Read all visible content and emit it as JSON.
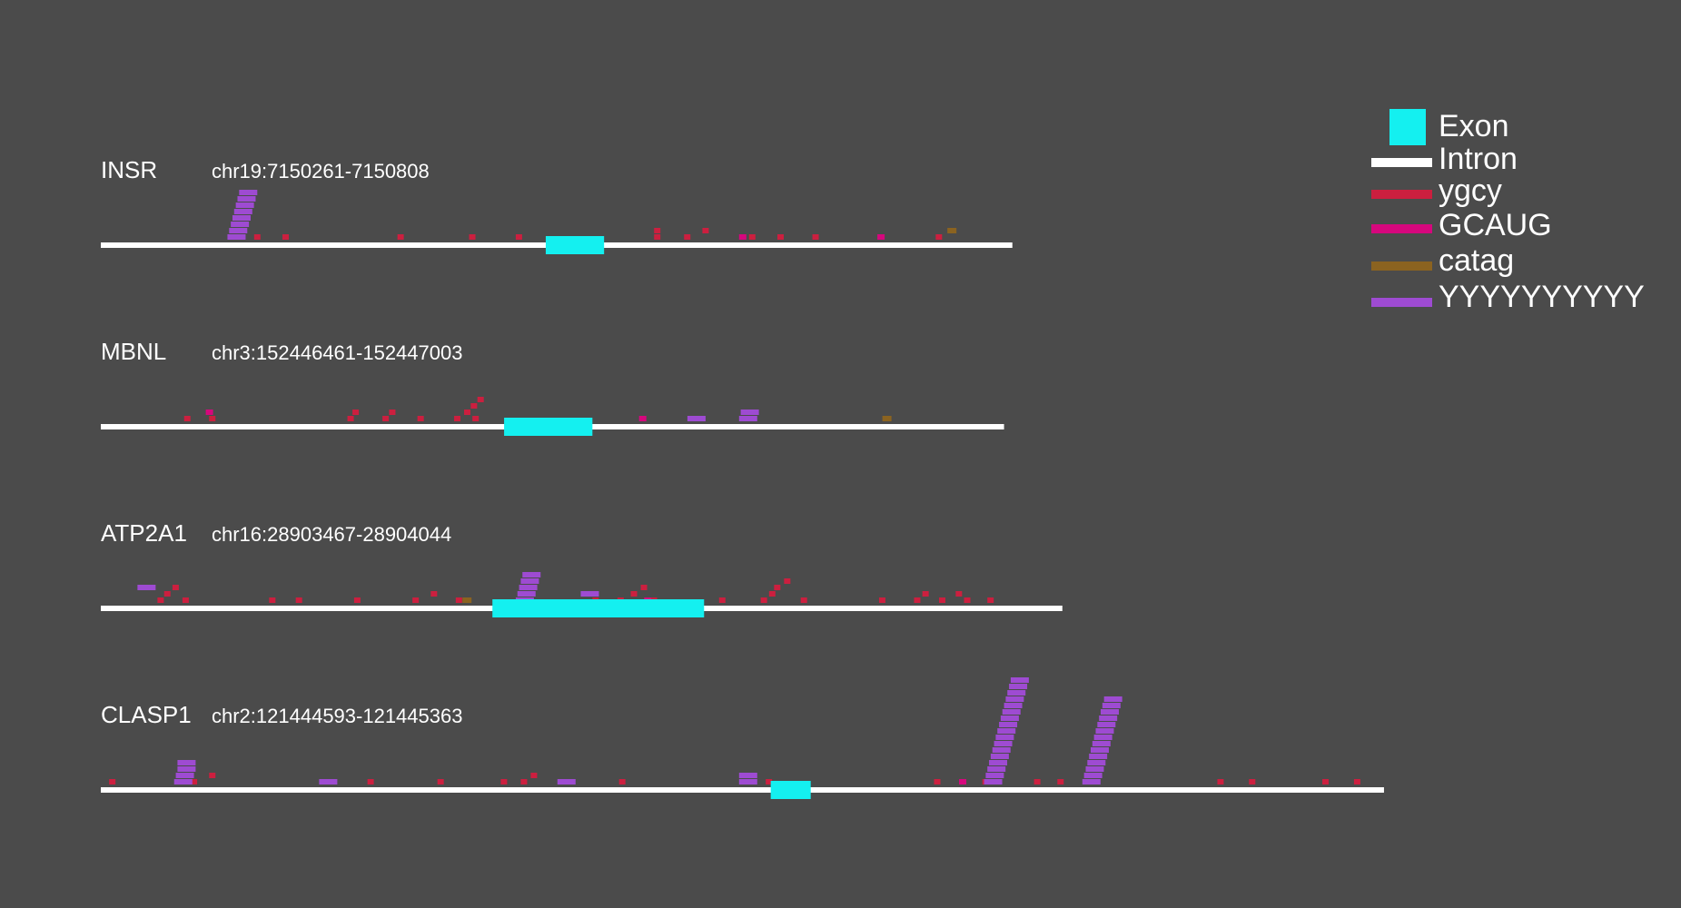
{
  "colors": {
    "background": "#4b4b4b",
    "exon": "#14f0f0",
    "intron": "#ffffff",
    "ygcy": "#cc1f3f",
    "GCAUG": "#d6077d",
    "catag": "#8b6320",
    "YYYYYYYYYY": "#9e4bd2"
  },
  "legend": [
    {
      "key": "exon",
      "label": "Exon"
    },
    {
      "key": "intron",
      "label": "Intron"
    },
    {
      "key": "ygcy",
      "label": "ygcy"
    },
    {
      "key": "GCAUG",
      "label": "GCAUG"
    },
    {
      "key": "catag",
      "label": "catag"
    },
    {
      "key": "YYYYYYYYYY",
      "label": "YYYYYYYYYY"
    }
  ],
  "genes": [
    {
      "name": "INSR",
      "coords": "chr19:7150261-7150808",
      "chrom": "chr19",
      "start": 7150261,
      "end": 7150808,
      "exons": [
        [
          7150528,
          7150563
        ]
      ],
      "motifs": {
        "ygcy": [
          [
            7150353,
            0
          ],
          [
            7150370,
            0
          ],
          [
            7150439,
            0
          ],
          [
            7150482,
            0
          ],
          [
            7150510,
            0
          ],
          [
            7150593,
            0
          ],
          [
            7150593,
            1
          ],
          [
            7150611,
            0
          ],
          [
            7150622,
            1
          ],
          [
            7150650,
            0
          ],
          [
            7150667,
            0
          ],
          [
            7150688,
            0
          ],
          [
            7150762,
            0
          ]
        ],
        "GCAUG": [
          [
            7150644,
            0
          ],
          [
            7150727,
            0
          ]
        ],
        "catag": [
          [
            7150769,
            1
          ]
        ],
        "YYYYYYYYYY": [
          [
            7150337,
            0
          ],
          [
            7150338,
            1
          ],
          [
            7150339,
            2
          ],
          [
            7150340,
            3
          ],
          [
            7150341,
            4
          ],
          [
            7150342,
            5
          ],
          [
            7150343,
            6
          ],
          [
            7150344,
            7
          ]
        ]
      }
    },
    {
      "name": "MBNL",
      "coords": "chr3:152446461-152447003",
      "chrom": "chr3",
      "start": 152446461,
      "end": 152447003,
      "exons": [
        [
          152446703,
          152446756
        ]
      ],
      "motifs": {
        "ygcy": [
          [
            152446511,
            0
          ],
          [
            152446526,
            0
          ],
          [
            152446609,
            0
          ],
          [
            152446612,
            1
          ],
          [
            152446630,
            0
          ],
          [
            152446634,
            1
          ],
          [
            152446651,
            0
          ],
          [
            152446673,
            0
          ],
          [
            152446684,
            0
          ],
          [
            152446679,
            1
          ],
          [
            152446683,
            2
          ],
          [
            152446687,
            3
          ]
        ],
        "GCAUG": [
          [
            152446524,
            1
          ],
          [
            152446784,
            0
          ]
        ],
        "catag": [
          [
            152446930,
            0
          ]
        ],
        "YYYYYYYYYY": [
          [
            152446813,
            0
          ],
          [
            152446844,
            0
          ],
          [
            152446845,
            1
          ]
        ]
      }
    },
    {
      "name": "ATP2A1",
      "coords": "chr16:28903467-28904044",
      "chrom": "chr16",
      "start": 28903467,
      "end": 28904044,
      "exons": [
        [
          28903702,
          28903829
        ]
      ],
      "motifs": {
        "ygcy": [
          [
            28903501,
            0
          ],
          [
            28903505,
            1
          ],
          [
            28903510,
            2
          ],
          [
            28903516,
            0
          ],
          [
            28903568,
            0
          ],
          [
            28903584,
            0
          ],
          [
            28903619,
            0
          ],
          [
            28903654,
            0
          ],
          [
            28903665,
            1
          ],
          [
            28903680,
            0
          ],
          [
            28903762,
            0
          ],
          [
            28903777,
            0
          ],
          [
            28903785,
            1
          ],
          [
            28903791,
            2
          ],
          [
            28903797,
            0
          ],
          [
            28903838,
            0
          ],
          [
            28903863,
            0
          ],
          [
            28903868,
            1
          ],
          [
            28903871,
            2
          ],
          [
            28903877,
            3
          ],
          [
            28903887,
            0
          ],
          [
            28903934,
            0
          ],
          [
            28903955,
            0
          ],
          [
            28903960,
            1
          ],
          [
            28903970,
            0
          ],
          [
            28903985,
            0
          ],
          [
            28903980,
            1
          ],
          [
            28903999,
            0
          ]
        ],
        "GCAUG": [
          [
            28903793,
            0
          ]
        ],
        "catag": [
          [
            28903684,
            0
          ]
        ],
        "YYYYYYYYYY": [
          [
            28903489,
            2
          ],
          [
            28903716,
            0
          ],
          [
            28903717,
            1
          ],
          [
            28903718,
            2
          ],
          [
            28903719,
            3
          ],
          [
            28903720,
            4
          ],
          [
            28903755,
            1
          ]
        ]
      }
    },
    {
      "name": "CLASP1",
      "coords": "chr2:121444593-121445363",
      "chrom": "chr2",
      "start": 121444593,
      "end": 121445363,
      "exons": [
        [
          121444995,
          121445019
        ]
      ],
      "motifs": {
        "ygcy": [
          [
            121444598,
            0
          ],
          [
            121444647,
            0
          ],
          [
            121444658,
            1
          ],
          [
            121444753,
            0
          ],
          [
            121444795,
            0
          ],
          [
            121444833,
            0
          ],
          [
            121444845,
            0
          ],
          [
            121444851,
            1
          ],
          [
            121444904,
            0
          ],
          [
            121444992,
            0
          ],
          [
            121445093,
            0
          ],
          [
            121445122,
            0
          ],
          [
            121445153,
            0
          ],
          [
            121445167,
            0
          ],
          [
            121445263,
            0
          ],
          [
            121445282,
            0
          ],
          [
            121445326,
            0
          ],
          [
            121445345,
            0
          ]
        ],
        "GCAUG": [
          [
            121445108,
            0
          ]
        ],
        "catag": [],
        "YYYYYYYYYY": [
          [
            121444637,
            0
          ],
          [
            121444638,
            1
          ],
          [
            121444639,
            2
          ],
          [
            121444639,
            3
          ],
          [
            121444724,
            0
          ],
          [
            121444867,
            0
          ],
          [
            121444976,
            0
          ],
          [
            121444976,
            1
          ],
          [
            121445123,
            0
          ],
          [
            121445124,
            1
          ],
          [
            121445125,
            2
          ],
          [
            121445126,
            3
          ],
          [
            121445127,
            4
          ],
          [
            121445128,
            5
          ],
          [
            121445129,
            6
          ],
          [
            121445130,
            7
          ],
          [
            121445131,
            8
          ],
          [
            121445132,
            9
          ],
          [
            121445133,
            10
          ],
          [
            121445134,
            11
          ],
          [
            121445135,
            12
          ],
          [
            121445136,
            13
          ],
          [
            121445137,
            14
          ],
          [
            121445138,
            15
          ],
          [
            121445139,
            16
          ],
          [
            121445182,
            0
          ],
          [
            121445183,
            1
          ],
          [
            121445184,
            2
          ],
          [
            121445185,
            3
          ],
          [
            121445186,
            4
          ],
          [
            121445187,
            5
          ],
          [
            121445188,
            6
          ],
          [
            121445189,
            7
          ],
          [
            121445190,
            8
          ],
          [
            121445191,
            9
          ],
          [
            121445192,
            10
          ],
          [
            121445193,
            11
          ],
          [
            121445194,
            12
          ],
          [
            121445195,
            13
          ]
        ]
      }
    }
  ]
}
